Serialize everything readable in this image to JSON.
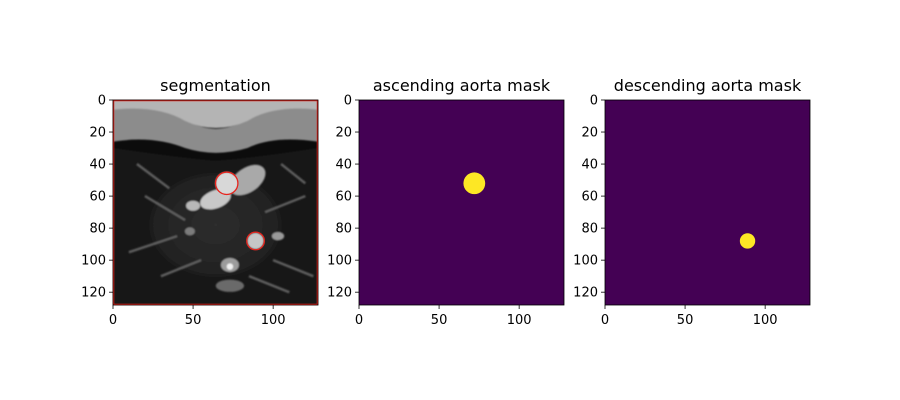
{
  "figure": {
    "panels": [
      {
        "title": "segmentation",
        "content": "mri",
        "x_ticks": [
          "0",
          "50",
          "100"
        ],
        "y_ticks": [
          "0",
          "20",
          "40",
          "60",
          "80",
          "100",
          "120"
        ],
        "contours": [
          {
            "name": "ascending aorta contour",
            "cx": 71,
            "cy": 52,
            "r": 7
          },
          {
            "name": "descending aorta contour",
            "cx": 89,
            "cy": 88,
            "r": 5.5
          }
        ]
      },
      {
        "title": "ascending aorta mask",
        "content": "mask",
        "x_ticks": [
          "0",
          "50",
          "100"
        ],
        "y_ticks": [
          "0",
          "20",
          "40",
          "60",
          "80",
          "100",
          "120"
        ],
        "mask": {
          "cx": 72,
          "cy": 52,
          "r": 6.8
        }
      },
      {
        "title": "descending aorta mask",
        "content": "mask",
        "x_ticks": [
          "0",
          "50",
          "100"
        ],
        "y_ticks": [
          "0",
          "20",
          "40",
          "60",
          "80",
          "100",
          "120"
        ],
        "mask": {
          "cx": 89,
          "cy": 88,
          "r": 4.8
        }
      }
    ],
    "image_size": [
      128,
      128
    ],
    "colors": {
      "mask_background": "#440154",
      "mask_foreground": "#fde725",
      "contour": "#e8231c"
    }
  }
}
